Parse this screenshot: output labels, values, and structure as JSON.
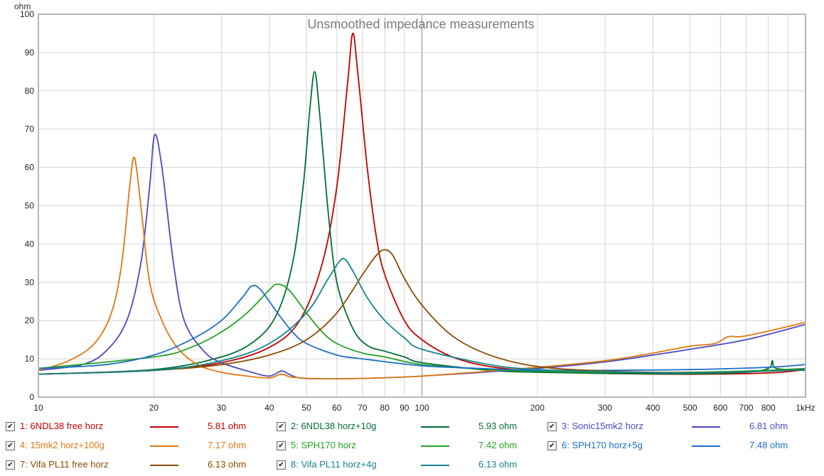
{
  "chart_data": {
    "type": "line",
    "title": "Unsmoothed impedance measurements",
    "ylabel": "ohm",
    "xscale": "log",
    "xlim": [
      10,
      1000
    ],
    "ylim": [
      0,
      100
    ],
    "xticks": [
      10,
      20,
      30,
      40,
      50,
      60,
      70,
      80,
      90,
      100,
      200,
      300,
      400,
      500,
      600,
      700,
      800,
      1000
    ],
    "xtick_labels": [
      "10",
      "20",
      "30",
      "40",
      "50",
      "60",
      "70",
      "80",
      "90",
      "100",
      "200",
      "300",
      "400",
      "500",
      "600",
      "700",
      "800",
      "1kHz"
    ],
    "yticks": [
      0,
      10,
      20,
      30,
      40,
      50,
      60,
      70,
      80,
      90,
      100
    ],
    "grid": true,
    "series": [
      {
        "name": "1: 6NDL38 free horz",
        "value_label": "5.81 ohm",
        "color": "#c00000",
        "points": [
          [
            10,
            6.0
          ],
          [
            20,
            7.0
          ],
          [
            30,
            9.0
          ],
          [
            40,
            13.0
          ],
          [
            48,
            20.0
          ],
          [
            55,
            35.0
          ],
          [
            60,
            55.0
          ],
          [
            64,
            82.0
          ],
          [
            66,
            95.0
          ],
          [
            68,
            85.0
          ],
          [
            72,
            60.0
          ],
          [
            76,
            42.0
          ],
          [
            80,
            32.0
          ],
          [
            90,
            20.0
          ],
          [
            100,
            15.0
          ],
          [
            120,
            10.5
          ],
          [
            150,
            8.0
          ],
          [
            200,
            6.8
          ],
          [
            300,
            6.2
          ],
          [
            500,
            6.0
          ],
          [
            800,
            6.3
          ],
          [
            1000,
            7.2
          ]
        ]
      },
      {
        "name": "2: 6NDL38 horz+10g",
        "value_label": "5.93 ohm",
        "color": "#006e33",
        "points": [
          [
            10,
            6.0
          ],
          [
            20,
            7.2
          ],
          [
            30,
            10.5
          ],
          [
            37,
            15.0
          ],
          [
            42,
            22.0
          ],
          [
            46,
            35.0
          ],
          [
            49,
            55.0
          ],
          [
            51,
            75.0
          ],
          [
            52.5,
            85.0
          ],
          [
            54,
            75.0
          ],
          [
            57,
            48.0
          ],
          [
            60,
            30.0
          ],
          [
            66,
            18.0
          ],
          [
            72,
            13.5
          ],
          [
            80,
            12.0
          ],
          [
            90,
            10.5
          ],
          [
            100,
            9.0
          ],
          [
            150,
            7.0
          ],
          [
            200,
            6.5
          ],
          [
            300,
            6.2
          ],
          [
            500,
            6.1
          ],
          [
            700,
            6.5
          ],
          [
            800,
            7.5
          ],
          [
            820,
            9.5
          ],
          [
            840,
            7.5
          ],
          [
            1000,
            7.0
          ]
        ]
      },
      {
        "name": "3: Sonic15mk2 horz",
        "value_label": "6.81 ohm",
        "color": "#4a4ac4",
        "points": [
          [
            10,
            7.0
          ],
          [
            13,
            8.5
          ],
          [
            15,
            12.0
          ],
          [
            17,
            20.0
          ],
          [
            18.5,
            35.0
          ],
          [
            19.5,
            55.0
          ],
          [
            20.1,
            68.5
          ],
          [
            21,
            60.0
          ],
          [
            22.5,
            35.0
          ],
          [
            24,
            20.0
          ],
          [
            27,
            12.0
          ],
          [
            30,
            9.0
          ],
          [
            36,
            6.5
          ],
          [
            40,
            5.5
          ],
          [
            43,
            6.8
          ],
          [
            45,
            6.0
          ],
          [
            48,
            5.0
          ],
          [
            55,
            4.8
          ],
          [
            70,
            4.9
          ],
          [
            100,
            5.5
          ],
          [
            200,
            7.5
          ],
          [
            300,
            9.2
          ],
          [
            400,
            11.0
          ],
          [
            500,
            12.5
          ],
          [
            700,
            15.0
          ],
          [
            1000,
            19.0
          ]
        ]
      },
      {
        "name": "4: 15mk2 horz+100g",
        "value_label": "7.17 ohm",
        "color": "#e07810",
        "points": [
          [
            10,
            7.0
          ],
          [
            12,
            9.5
          ],
          [
            14,
            14.0
          ],
          [
            15.5,
            22.0
          ],
          [
            16.5,
            35.0
          ],
          [
            17.3,
            55.0
          ],
          [
            17.8,
            62.5
          ],
          [
            18.5,
            50.0
          ],
          [
            19.5,
            30.0
          ],
          [
            21,
            20.0
          ],
          [
            23,
            13.0
          ],
          [
            26,
            8.5
          ],
          [
            30,
            6.5
          ],
          [
            35,
            5.5
          ],
          [
            40,
            5.0
          ],
          [
            43,
            6.0
          ],
          [
            46,
            5.2
          ],
          [
            55,
            4.8
          ],
          [
            70,
            4.9
          ],
          [
            100,
            5.5
          ],
          [
            200,
            7.8
          ],
          [
            300,
            9.5
          ],
          [
            400,
            11.5
          ],
          [
            500,
            13.3
          ],
          [
            580,
            14.0
          ],
          [
            630,
            15.8
          ],
          [
            700,
            16.0
          ],
          [
            1000,
            19.5
          ]
        ]
      },
      {
        "name": "5: SPH170 horz",
        "value_label": "7.42 ohm",
        "color": "#22a322",
        "points": [
          [
            10,
            7.5
          ],
          [
            20,
            10.5
          ],
          [
            25,
            13.0
          ],
          [
            30,
            17.0
          ],
          [
            35,
            22.0
          ],
          [
            40,
            28.0
          ],
          [
            42,
            29.5
          ],
          [
            45,
            28.0
          ],
          [
            50,
            22.0
          ],
          [
            55,
            17.0
          ],
          [
            60,
            14.0
          ],
          [
            70,
            11.5
          ],
          [
            80,
            10.5
          ],
          [
            100,
            8.5
          ],
          [
            150,
            7.2
          ],
          [
            200,
            6.8
          ],
          [
            300,
            6.5
          ],
          [
            500,
            6.5
          ],
          [
            800,
            7.0
          ],
          [
            1000,
            7.5
          ]
        ]
      },
      {
        "name": "6: SPH170 horz+5g",
        "value_label": "7.48 ohm",
        "color": "#1e6ec8",
        "points": [
          [
            10,
            7.5
          ],
          [
            15,
            8.5
          ],
          [
            20,
            11.0
          ],
          [
            25,
            15.0
          ],
          [
            30,
            20.0
          ],
          [
            34,
            26.0
          ],
          [
            36,
            29.0
          ],
          [
            38,
            28.0
          ],
          [
            42,
            22.0
          ],
          [
            46,
            17.0
          ],
          [
            50,
            14.0
          ],
          [
            60,
            11.0
          ],
          [
            70,
            10.0
          ],
          [
            100,
            8.2
          ],
          [
            150,
            7.4
          ],
          [
            200,
            7.0
          ],
          [
            300,
            7.0
          ],
          [
            500,
            7.2
          ],
          [
            800,
            7.8
          ],
          [
            1000,
            8.5
          ]
        ]
      },
      {
        "name": "7: Vifa PL11 free horz",
        "value_label": "6.13 ohm",
        "color": "#8b4a00",
        "points": [
          [
            10,
            6.0
          ],
          [
            20,
            7.0
          ],
          [
            30,
            8.5
          ],
          [
            40,
            11.0
          ],
          [
            50,
            15.0
          ],
          [
            60,
            22.0
          ],
          [
            70,
            32.0
          ],
          [
            76,
            37.0
          ],
          [
            80,
            38.5
          ],
          [
            84,
            37.0
          ],
          [
            90,
            31.0
          ],
          [
            100,
            24.0
          ],
          [
            120,
            16.0
          ],
          [
            150,
            11.0
          ],
          [
            200,
            8.0
          ],
          [
            300,
            6.8
          ],
          [
            500,
            6.4
          ],
          [
            800,
            6.8
          ],
          [
            1000,
            7.3
          ]
        ]
      },
      {
        "name": "8: Vifa PL11 horz+4g",
        "value_label": "6.13 ohm",
        "color": "#14858a",
        "points": [
          [
            10,
            6.0
          ],
          [
            20,
            7.0
          ],
          [
            30,
            9.5
          ],
          [
            40,
            14.0
          ],
          [
            50,
            22.0
          ],
          [
            57,
            31.0
          ],
          [
            61,
            35.5
          ],
          [
            63,
            36.0
          ],
          [
            66,
            33.0
          ],
          [
            72,
            26.0
          ],
          [
            80,
            20.0
          ],
          [
            90,
            15.5
          ],
          [
            100,
            12.5
          ],
          [
            150,
            8.5
          ],
          [
            200,
            7.2
          ],
          [
            300,
            6.6
          ],
          [
            500,
            6.3
          ],
          [
            800,
            6.8
          ],
          [
            1000,
            7.2
          ]
        ]
      }
    ]
  },
  "legend": {
    "items": [
      {
        "label": "1: 6NDL38 free horz",
        "value": "5.81 ohm",
        "color": "#c00000",
        "checked": true
      },
      {
        "label": "2: 6NDL38 horz+10g",
        "value": "5.93 ohm",
        "color": "#006e33",
        "checked": true
      },
      {
        "label": "3: Sonic15mk2 horz",
        "value": "6.81 ohm",
        "color": "#4a4ac4",
        "checked": true
      },
      {
        "label": "4: 15mk2 horz+100g",
        "value": "7.17 ohm",
        "color": "#e07810",
        "checked": true
      },
      {
        "label": "5: SPH170 horz",
        "value": "7.42 ohm",
        "color": "#22a322",
        "checked": true
      },
      {
        "label": "6: SPH170 horz+5g",
        "value": "7.48 ohm",
        "color": "#1e6ec8",
        "checked": true
      },
      {
        "label": "7: Vifa PL11 free horz",
        "value": "6.13 ohm",
        "color": "#8b4a00",
        "checked": true
      },
      {
        "label": "8: Vifa PL11 horz+4g",
        "value": "6.13 ohm",
        "color": "#14858a",
        "checked": true
      }
    ]
  }
}
